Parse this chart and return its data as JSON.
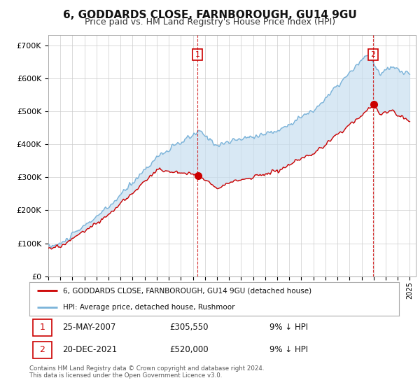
{
  "title": "6, GODDARDS CLOSE, FARNBOROUGH, GU14 9GU",
  "subtitle": "Price paid vs. HM Land Registry's House Price Index (HPI)",
  "yticks": [
    0,
    100000,
    200000,
    300000,
    400000,
    500000,
    600000,
    700000
  ],
  "ytick_labels": [
    "£0",
    "£100K",
    "£200K",
    "£300K",
    "£400K",
    "£500K",
    "£600K",
    "£700K"
  ],
  "ylim": [
    0,
    730000
  ],
  "legend_line1": "6, GODDARDS CLOSE, FARNBOROUGH, GU14 9GU (detached house)",
  "legend_line2": "HPI: Average price, detached house, Rushmoor",
  "sale1_date": "25-MAY-2007",
  "sale1_price": "£305,550",
  "sale1_hpi": "9% ↓ HPI",
  "sale1_year": 2007.39,
  "sale1_value": 305550,
  "sale2_date": "20-DEC-2021",
  "sale2_price": "£520,000",
  "sale2_hpi": "9% ↓ HPI",
  "sale2_year": 2021.96,
  "sale2_value": 520000,
  "footer": "Contains HM Land Registry data © Crown copyright and database right 2024.\nThis data is licensed under the Open Government Licence v3.0.",
  "line_color_hpi": "#7bb3d9",
  "line_color_price": "#cc0000",
  "fill_color_hpi": "#c8dff0",
  "marker_color": "#cc0000",
  "background_color": "#ffffff",
  "grid_color": "#cccccc",
  "title_fontsize": 11,
  "subtitle_fontsize": 9,
  "axis_fontsize": 8
}
